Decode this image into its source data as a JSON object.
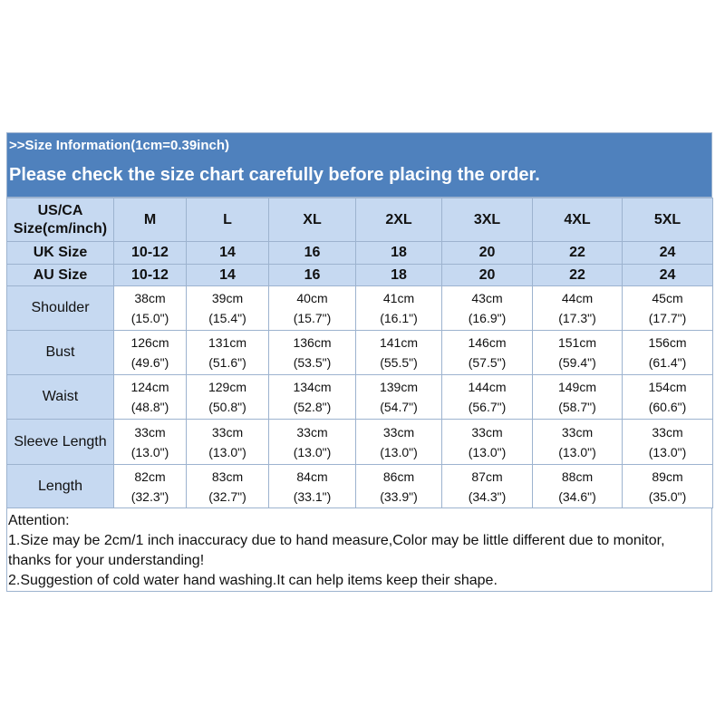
{
  "header": {
    "info": ">>Size Information(1cm=0.39inch)",
    "title": "Please check the size chart carefully before placing the order."
  },
  "table": {
    "corner": [
      "US/CA",
      "Size(cm/inch)"
    ],
    "sizes": [
      "M",
      "L",
      "XL",
      "2XL",
      "3XL",
      "4XL",
      "5XL"
    ],
    "uk_label": "UK Size",
    "uk": [
      "10-12",
      "14",
      "16",
      "18",
      "20",
      "22",
      "24"
    ],
    "au_label": "AU Size",
    "au": [
      "10-12",
      "14",
      "16",
      "18",
      "20",
      "22",
      "24"
    ],
    "rows": [
      {
        "label": "Shoulder",
        "cells": [
          [
            "38cm",
            "(15.0\")"
          ],
          [
            "39cm",
            "(15.4\")"
          ],
          [
            "40cm",
            "(15.7\")"
          ],
          [
            "41cm",
            "(16.1\")"
          ],
          [
            "43cm",
            "(16.9\")"
          ],
          [
            "44cm",
            "(17.3\")"
          ],
          [
            "45cm",
            "(17.7\")"
          ]
        ]
      },
      {
        "label": "Bust",
        "cells": [
          [
            "126cm",
            "(49.6\")"
          ],
          [
            "131cm",
            "(51.6\")"
          ],
          [
            "136cm",
            "(53.5\")"
          ],
          [
            "141cm",
            "(55.5\")"
          ],
          [
            "146cm",
            "(57.5\")"
          ],
          [
            "151cm",
            "(59.4\")"
          ],
          [
            "156cm",
            "(61.4\")"
          ]
        ]
      },
      {
        "label": "Waist",
        "cells": [
          [
            "124cm",
            "(48.8\")"
          ],
          [
            "129cm",
            "(50.8\")"
          ],
          [
            "134cm",
            "(52.8\")"
          ],
          [
            "139cm",
            "(54.7\")"
          ],
          [
            "144cm",
            "(56.7\")"
          ],
          [
            "149cm",
            "(58.7\")"
          ],
          [
            "154cm",
            "(60.6\")"
          ]
        ]
      },
      {
        "label": "Sleeve Length",
        "cells": [
          [
            "33cm",
            "(13.0\")"
          ],
          [
            "33cm",
            "(13.0\")"
          ],
          [
            "33cm",
            "(13.0\")"
          ],
          [
            "33cm",
            "(13.0\")"
          ],
          [
            "33cm",
            "(13.0\")"
          ],
          [
            "33cm",
            "(13.0\")"
          ],
          [
            "33cm",
            "(13.0\")"
          ]
        ]
      },
      {
        "label": "Length",
        "cells": [
          [
            "82cm",
            "(32.3\")"
          ],
          [
            "83cm",
            "(32.7\")"
          ],
          [
            "84cm",
            "(33.1\")"
          ],
          [
            "86cm",
            "(33.9\")"
          ],
          [
            "87cm",
            "(34.3\")"
          ],
          [
            "88cm",
            "(34.6\")"
          ],
          [
            "89cm",
            "(35.0\")"
          ]
        ]
      }
    ]
  },
  "notes": [
    "Attention:",
    "1.Size may be 2cm/1 inch inaccuracy due to hand measure,Color may be little different due to monitor,",
    "thanks for your understanding!",
    "2.Suggestion of cold water hand washing.It can help items keep their shape."
  ]
}
